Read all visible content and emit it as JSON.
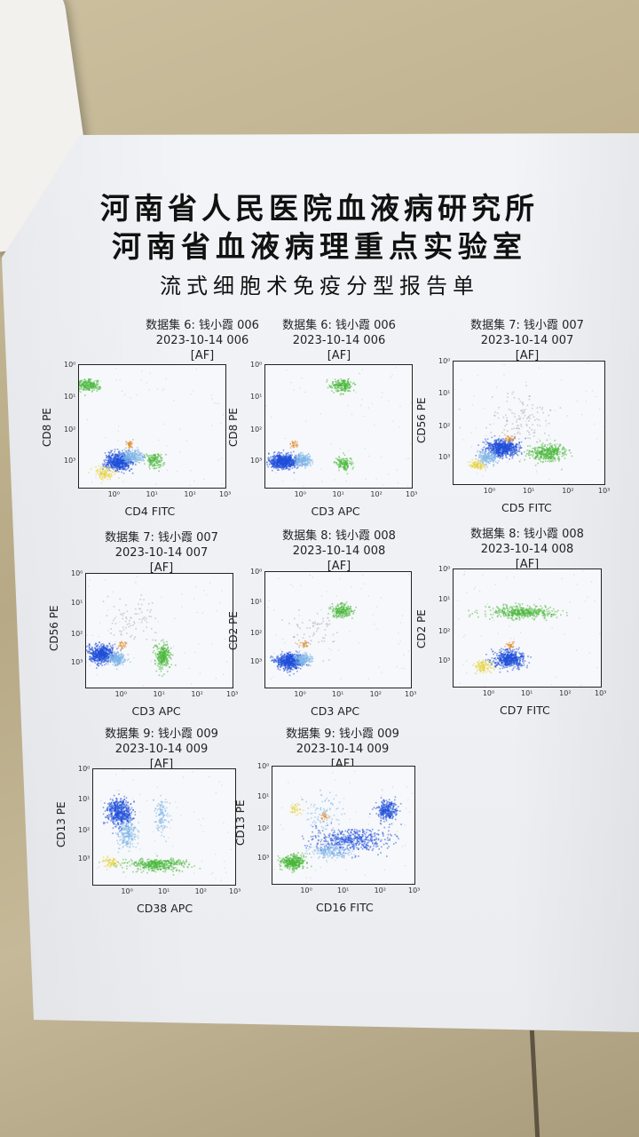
{
  "report": {
    "title_line1": "河南省人民医院血液病研究所",
    "title_line2": "河南省血液病理重点实验室",
    "subtitle": "流式细胞术免疫分型报告单"
  },
  "tick_labels": {
    "x": [
      "10⁰",
      "10¹",
      "10²",
      "10³"
    ],
    "y": [
      "10⁰",
      "10¹",
      "10²",
      "10³"
    ]
  },
  "panels": [
    {
      "line1": "数据集 6: 钱小霞 006",
      "line2": "2023-10-14 006",
      "line3": "[AF]",
      "xlabel": "CD4 FITC",
      "ylabel": "CD8 PE"
    },
    {
      "line1": "数据集 6: 钱小霞 006",
      "line2": "2023-10-14 006",
      "line3": "[AF]",
      "xlabel": "CD3 APC",
      "ylabel": "CD8 PE"
    },
    {
      "line1": "数据集 7: 钱小霞 007",
      "line2": "2023-10-14 007",
      "line3": "[AF]",
      "xlabel": "CD5 FITC",
      "ylabel": "CD56 PE"
    },
    {
      "line1": "数据集 7: 钱小霞 007",
      "line2": "2023-10-14 007",
      "line3": "[AF]",
      "xlabel": "CD3 APC",
      "ylabel": "CD56 PE"
    },
    {
      "line1": "数据集 8: 钱小霞 008",
      "line2": "2023-10-14 008",
      "line3": "[AF]",
      "xlabel": "CD3 APC",
      "ylabel": "CD2 PE"
    },
    {
      "line1": "数据集 8: 钱小霞 008",
      "line2": "2023-10-14 008",
      "line3": "[AF]",
      "xlabel": "CD7 FITC",
      "ylabel": "CD2 PE"
    },
    {
      "line1": "数据集 9: 钱小霞 009",
      "line2": "2023-10-14 009",
      "line3": "[AF]",
      "xlabel": "CD38 APC",
      "ylabel": "CD13 PE"
    },
    {
      "line1": "数据集 9: 钱小霞 009",
      "line2": "2023-10-14 009",
      "line3": "[AF]",
      "xlabel": "CD16 FITC",
      "ylabel": "CD13 PE"
    }
  ],
  "colors": {
    "blue": "#1f4fd8",
    "lightblue": "#7fb6e8",
    "green": "#49b83a",
    "yellow": "#e6d23a",
    "orange": "#e08a2a",
    "grey": "#a7a0b8"
  }
}
